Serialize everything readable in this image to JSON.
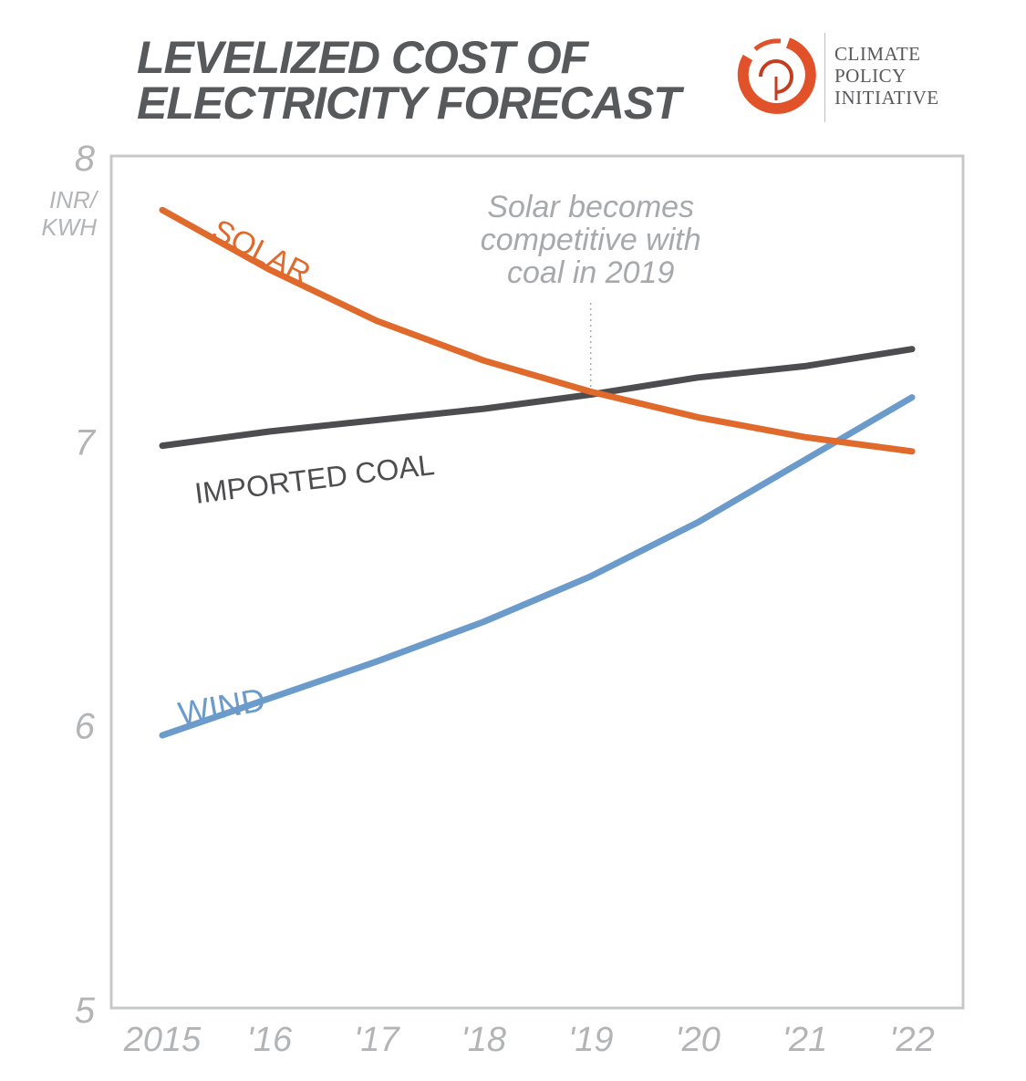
{
  "title": {
    "line1": "LEVELIZED COST OF",
    "line2": "ELECTRICITY FORECAST"
  },
  "logo": {
    "line1": "CLIMATE",
    "line2": "POLICY",
    "line3": "INITIATIVE",
    "mark_color": "#e2522a"
  },
  "chart_data": {
    "type": "line",
    "title": "LEVELIZED COST OF ELECTRICITY FORECAST",
    "ylabel": "INR/ KWH",
    "ylabel_lines": [
      "INR/",
      "KWH"
    ],
    "xlabel": "",
    "x": [
      2015,
      2016,
      2017,
      2018,
      2019,
      2020,
      2021,
      2022
    ],
    "categories": [
      "2015",
      "'16",
      "'17",
      "'18",
      "'19",
      "'20",
      "'21",
      "'22"
    ],
    "ylim": [
      5,
      8
    ],
    "yticks": [
      "5",
      "6",
      "7",
      "8"
    ],
    "grid": false,
    "series": [
      {
        "name": "SOLAR",
        "color": "#e06a2b",
        "values": [
          7.81,
          7.6,
          7.42,
          7.28,
          7.17,
          7.08,
          7.01,
          6.96
        ]
      },
      {
        "name": "IMPORTED COAL",
        "color": "#4d4d4f",
        "values": [
          6.98,
          7.03,
          7.07,
          7.11,
          7.16,
          7.22,
          7.26,
          7.32
        ]
      },
      {
        "name": "WIND",
        "color": "#6b9bcb",
        "values": [
          5.96,
          6.09,
          6.22,
          6.36,
          6.52,
          6.71,
          6.93,
          7.15
        ]
      }
    ],
    "annotation": {
      "lines": [
        "Solar becomes",
        "competitive with",
        "coal in 2019"
      ],
      "x": 2019
    }
  }
}
